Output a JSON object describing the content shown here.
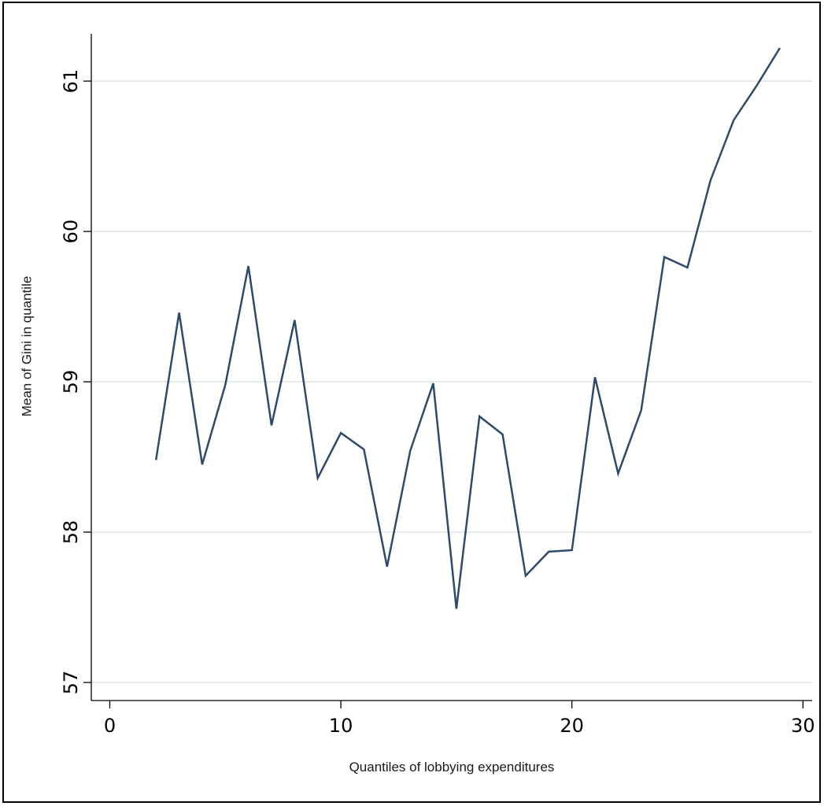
{
  "chart_data": {
    "type": "line",
    "title": "",
    "xlabel": "Quantiles of lobbying expenditures",
    "ylabel": "Mean of Gini in quantile",
    "xlim": [
      -0.8,
      30.4
    ],
    "ylim": [
      56.88,
      61.33
    ],
    "xticks": [
      0,
      10,
      20,
      30
    ],
    "yticks": [
      57,
      58,
      59,
      60,
      61
    ],
    "grid": true,
    "series_color": "#2e4a6b",
    "x": [
      2,
      3,
      4,
      5,
      6,
      7,
      8,
      9,
      10,
      11,
      12,
      13,
      14,
      15,
      16,
      17,
      18,
      19,
      20,
      21,
      22,
      23,
      24,
      25,
      26,
      27,
      28,
      29
    ],
    "y": [
      58.48,
      59.46,
      58.45,
      58.98,
      59.77,
      58.71,
      59.41,
      58.36,
      58.66,
      58.55,
      57.77,
      58.54,
      58.99,
      57.49,
      58.77,
      58.65,
      57.71,
      57.87,
      57.88,
      59.03,
      58.39,
      58.81,
      59.83,
      59.76,
      60.34,
      60.74,
      60.97,
      61.22
    ]
  }
}
